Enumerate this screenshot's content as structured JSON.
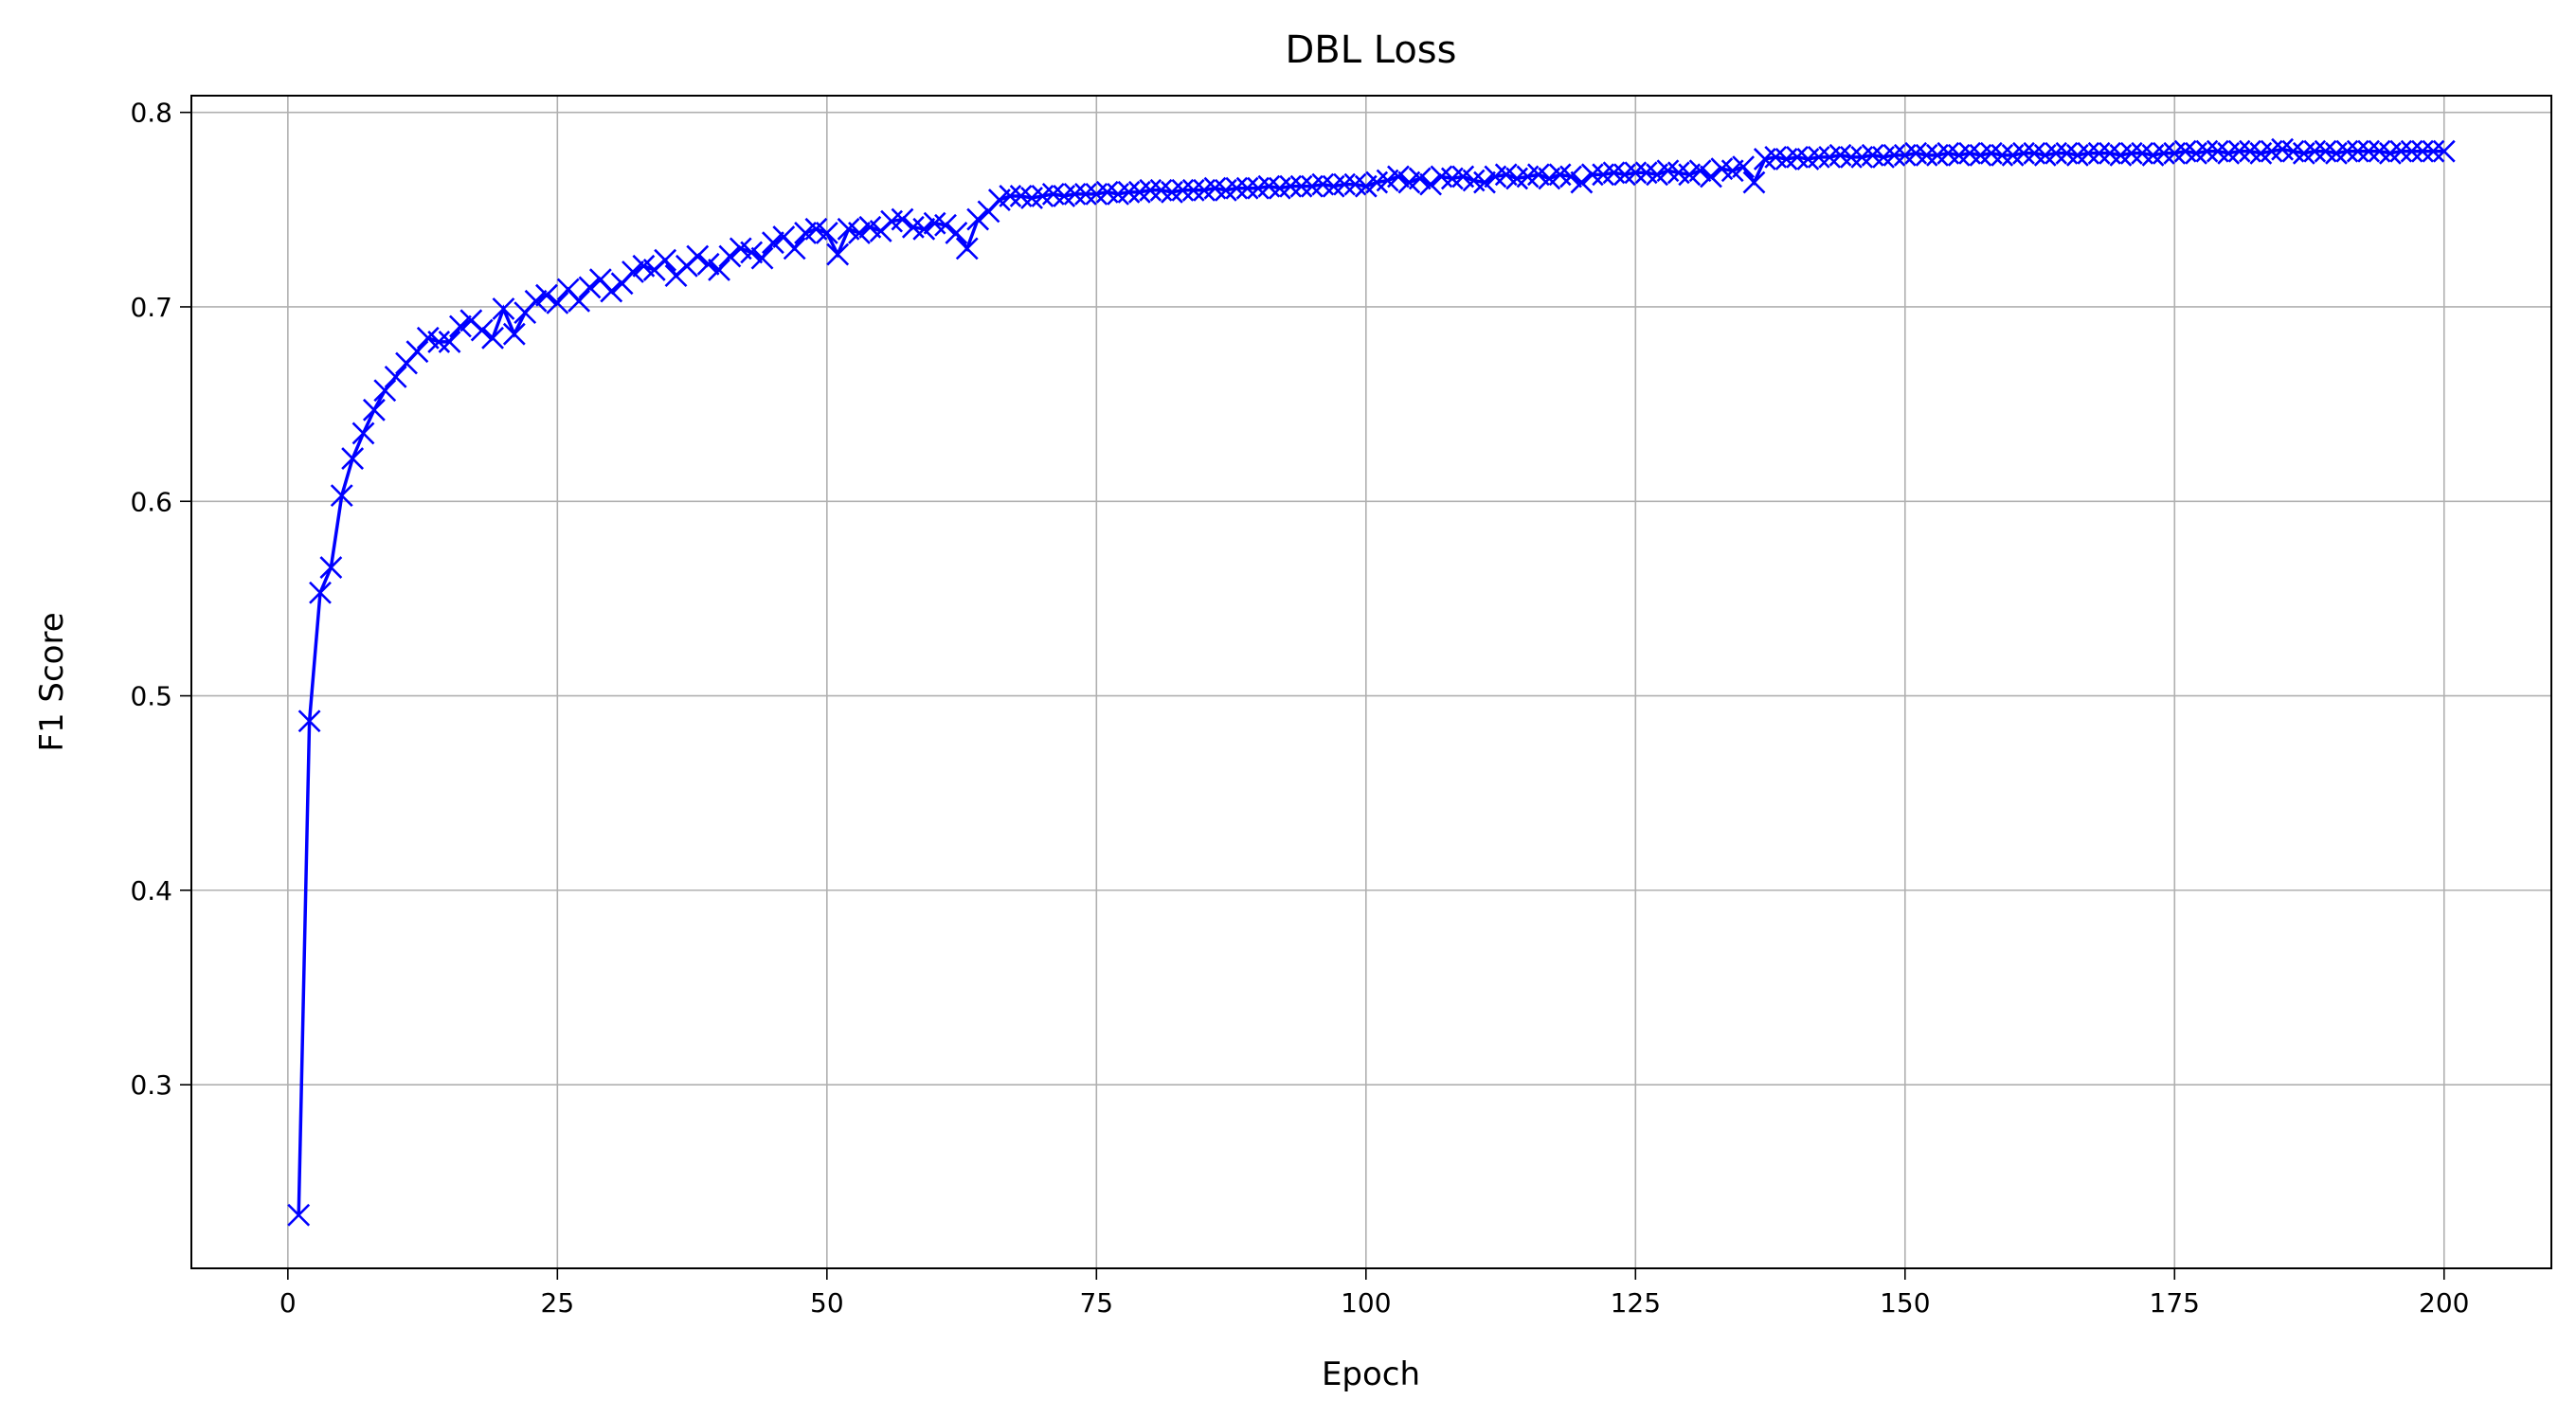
{
  "chart_data": {
    "type": "line",
    "title": "DBL Loss",
    "x_label": "Epoch",
    "y_label": "F1 Score",
    "color": "#0000ff",
    "marker": "x",
    "grid": true,
    "x": [
      1,
      2,
      3,
      4,
      5,
      6,
      7,
      8,
      9,
      10,
      11,
      12,
      13,
      14,
      15,
      16,
      17,
      18,
      19,
      20,
      21,
      22,
      23,
      24,
      25,
      26,
      27,
      28,
      29,
      30,
      31,
      32,
      33,
      34,
      35,
      36,
      37,
      38,
      39,
      40,
      41,
      42,
      43,
      44,
      45,
      46,
      47,
      48,
      49,
      50,
      51,
      52,
      53,
      54,
      55,
      56,
      57,
      58,
      59,
      60,
      61,
      62,
      63,
      64,
      65,
      66,
      67,
      68,
      69,
      70,
      71,
      72,
      73,
      74,
      75,
      76,
      77,
      78,
      79,
      80,
      81,
      82,
      83,
      84,
      85,
      86,
      87,
      88,
      89,
      90,
      91,
      92,
      93,
      94,
      95,
      96,
      97,
      98,
      99,
      100,
      101,
      102,
      103,
      104,
      105,
      106,
      107,
      108,
      109,
      110,
      111,
      112,
      113,
      114,
      115,
      116,
      117,
      118,
      119,
      120,
      121,
      122,
      123,
      124,
      125,
      126,
      127,
      128,
      129,
      130,
      131,
      132,
      133,
      134,
      135,
      136,
      137,
      138,
      139,
      140,
      141,
      142,
      143,
      144,
      145,
      146,
      147,
      148,
      149,
      150,
      151,
      152,
      153,
      154,
      155,
      156,
      157,
      158,
      159,
      160,
      161,
      162,
      163,
      164,
      165,
      166,
      167,
      168,
      169,
      170,
      171,
      172,
      173,
      174,
      175,
      176,
      177,
      178,
      179,
      180,
      181,
      182,
      183,
      184,
      185,
      186,
      187,
      188,
      189,
      190,
      191,
      192,
      193,
      194,
      195,
      196,
      197,
      198,
      199,
      200
    ],
    "values": [
      0.233,
      0.487,
      0.553,
      0.566,
      0.603,
      0.622,
      0.635,
      0.647,
      0.657,
      0.664,
      0.671,
      0.677,
      0.684,
      0.682,
      0.682,
      0.69,
      0.693,
      0.688,
      0.684,
      0.699,
      0.686,
      0.697,
      0.703,
      0.706,
      0.702,
      0.709,
      0.703,
      0.71,
      0.714,
      0.708,
      0.712,
      0.718,
      0.721,
      0.719,
      0.724,
      0.716,
      0.721,
      0.726,
      0.722,
      0.719,
      0.726,
      0.73,
      0.728,
      0.725,
      0.733,
      0.736,
      0.73,
      0.738,
      0.74,
      0.738,
      0.727,
      0.74,
      0.738,
      0.741,
      0.739,
      0.744,
      0.745,
      0.741,
      0.74,
      0.743,
      0.742,
      0.738,
      0.73,
      0.745,
      0.749,
      0.755,
      0.757,
      0.757,
      0.756,
      0.757,
      0.758,
      0.757,
      0.758,
      0.758,
      0.758,
      0.759,
      0.758,
      0.759,
      0.759,
      0.76,
      0.76,
      0.759,
      0.76,
      0.76,
      0.76,
      0.761,
      0.76,
      0.761,
      0.761,
      0.761,
      0.762,
      0.761,
      0.762,
      0.762,
      0.762,
      0.763,
      0.762,
      0.763,
      0.763,
      0.762,
      0.764,
      0.765,
      0.767,
      0.764,
      0.766,
      0.763,
      0.767,
      0.766,
      0.767,
      0.765,
      0.764,
      0.767,
      0.768,
      0.766,
      0.767,
      0.768,
      0.766,
      0.768,
      0.767,
      0.764,
      0.768,
      0.768,
      0.769,
      0.768,
      0.769,
      0.769,
      0.768,
      0.77,
      0.769,
      0.768,
      0.77,
      0.767,
      0.771,
      0.77,
      0.772,
      0.764,
      0.776,
      0.777,
      0.776,
      0.777,
      0.776,
      0.777,
      0.777,
      0.778,
      0.777,
      0.777,
      0.778,
      0.777,
      0.778,
      0.778,
      0.779,
      0.778,
      0.778,
      0.779,
      0.778,
      0.779,
      0.778,
      0.779,
      0.778,
      0.778,
      0.779,
      0.779,
      0.778,
      0.779,
      0.779,
      0.778,
      0.779,
      0.779,
      0.779,
      0.778,
      0.779,
      0.779,
      0.778,
      0.779,
      0.779,
      0.78,
      0.779,
      0.78,
      0.78,
      0.779,
      0.78,
      0.78,
      0.779,
      0.78,
      0.781,
      0.78,
      0.779,
      0.78,
      0.78,
      0.779,
      0.78,
      0.78,
      0.78,
      0.78,
      0.779,
      0.78,
      0.78,
      0.78,
      0.78,
      0.78
    ],
    "xlim": [
      -8.95,
      209.95
    ],
    "xticks": [
      0,
      25,
      50,
      75,
      100,
      125,
      150,
      175,
      200
    ],
    "ylim": [
      0.2056,
      0.8086
    ],
    "yticks": [
      0.3,
      0.4,
      0.5,
      0.6,
      0.7,
      0.8
    ]
  }
}
